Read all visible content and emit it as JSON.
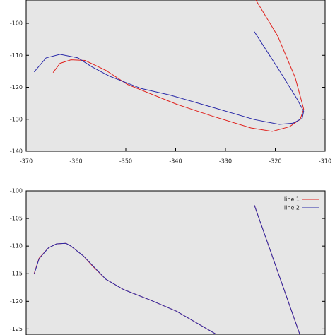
{
  "chart_data": [
    {
      "type": "line",
      "xlim": [
        -370,
        -310
      ],
      "xticks": [
        -370,
        -360,
        -350,
        -340,
        -330,
        -320,
        -310
      ],
      "ylim": [
        -140,
        -92.7
      ],
      "yticks": [
        -140,
        -130,
        -120,
        -110,
        -100
      ],
      "series": [
        {
          "name": "line 1",
          "color": "#e0201c",
          "x": [
            -323.9,
            -319.5,
            -316,
            -314.3,
            -315,
            -317.1,
            -320.6,
            -324.9,
            -332.7,
            -339.8,
            -349.7,
            -354,
            -358.2,
            -361,
            -363.2,
            -364.6
          ],
          "values": [
            -92.7,
            -104,
            -117,
            -126.8,
            -130,
            -132.3,
            -133.8,
            -132.7,
            -129,
            -125.3,
            -119.1,
            -114.7,
            -111.6,
            -111.4,
            -112.5,
            -115.4
          ]
        },
        {
          "name": "line 2",
          "color": "#2a2aa8",
          "x": [
            -324.2,
            -319.2,
            -315.7,
            -314.3,
            -314.6,
            -316.4,
            -319.2,
            -324.2,
            -332.7,
            -341.2,
            -346.9,
            -353.3,
            -356.8,
            -359.6,
            -363.2,
            -366,
            -368.4
          ],
          "values": [
            -102.6,
            -114.7,
            -123.5,
            -127.5,
            -129.7,
            -131.2,
            -131.6,
            -130.1,
            -126.2,
            -122.4,
            -120.4,
            -116.5,
            -113.6,
            -110.8,
            -109.7,
            -110.8,
            -115.2
          ]
        }
      ]
    },
    {
      "type": "line",
      "xlim": [
        -370,
        -310
      ],
      "ylim": [
        -126.1,
        -100
      ],
      "yticks": [
        -125,
        -120,
        -115,
        -110,
        -105,
        -100
      ],
      "legend": "upper right",
      "series": [
        {
          "name": "line 1",
          "color": "#e0201c",
          "x": [
            -368.4,
            -367.4,
            -365.5,
            -363.9,
            -362,
            -361,
            -358.5,
            -356.8,
            -354,
            -350.4,
            -345,
            -339.8,
            -332,
            null,
            -324.2,
            -315
          ],
          "values": [
            -115,
            -112.2,
            -110.3,
            -109.6,
            -109.5,
            -110,
            -111.8,
            -113.5,
            -116,
            -117.9,
            -119.8,
            -121.8,
            -125.9,
            null,
            -102.6,
            -126.2
          ]
        },
        {
          "name": "line 2",
          "color": "#2a2aa8",
          "x": [
            -368.4,
            -367.4,
            -365.5,
            -363.9,
            -362,
            -361,
            -358.5,
            -356.8,
            -354,
            -350.4,
            -345,
            -339.8,
            -332,
            null,
            -324.2,
            -315
          ],
          "values": [
            -115.1,
            -112.3,
            -110.3,
            -109.6,
            -109.5,
            -110,
            -111.8,
            -113.4,
            -116,
            -117.9,
            -119.8,
            -121.8,
            -125.9,
            null,
            -102.6,
            -126.2
          ]
        }
      ]
    }
  ]
}
